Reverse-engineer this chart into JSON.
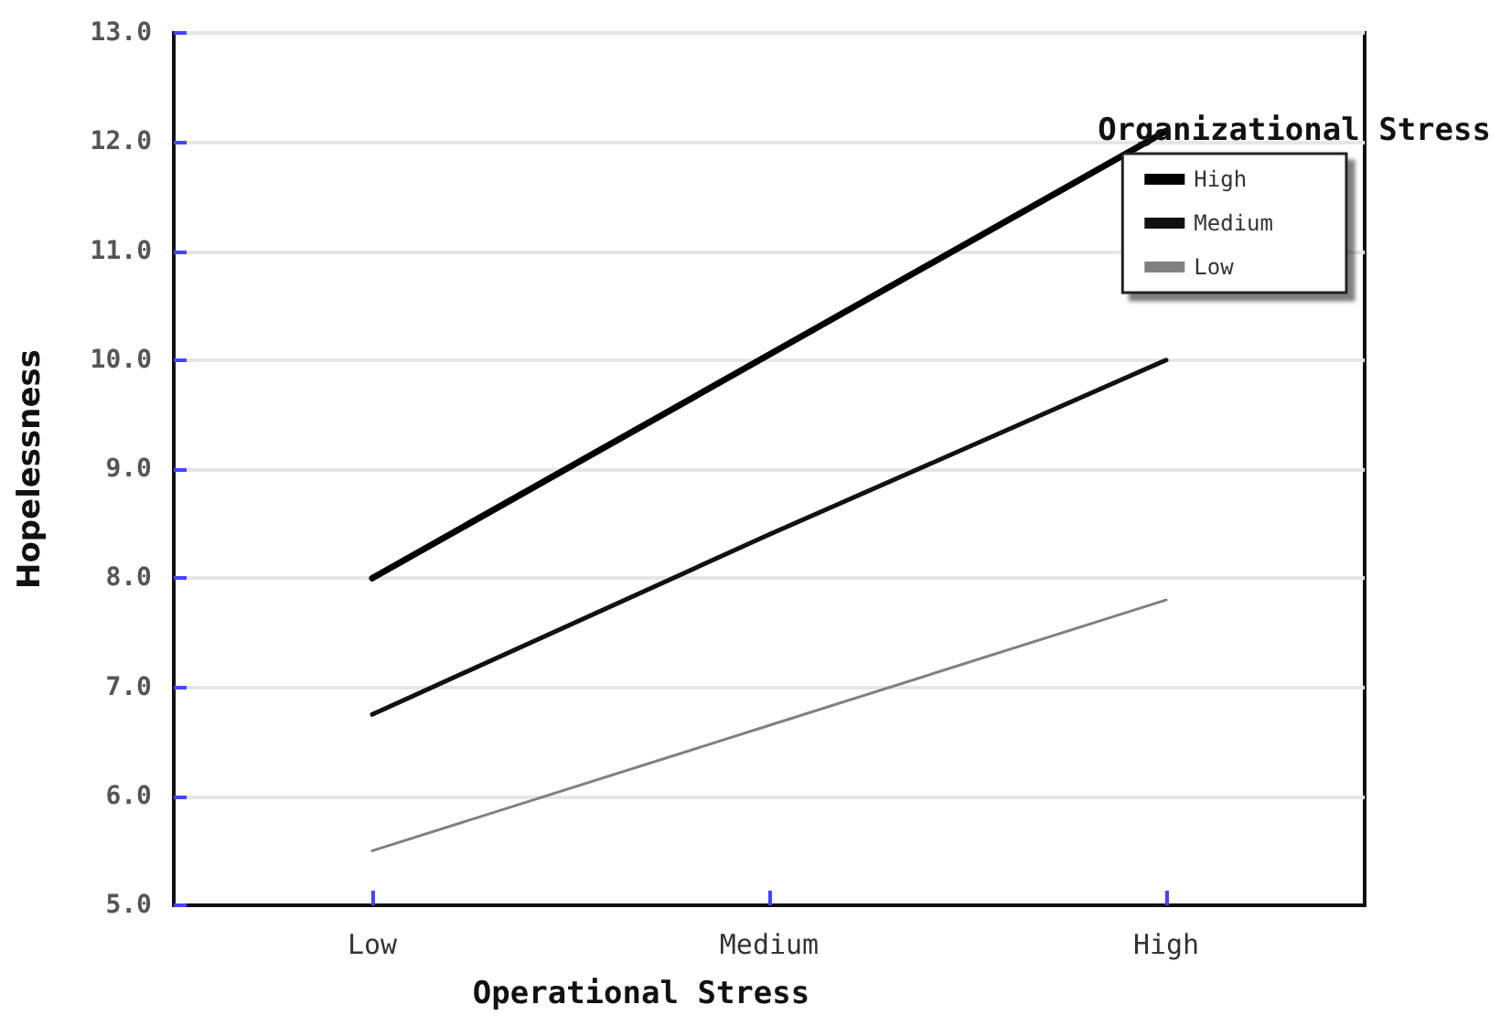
{
  "chart_data": {
    "type": "line",
    "xlabel": "Operational Stress",
    "ylabel": "Hopelessness",
    "legend_title": "Organizational Stress",
    "categories": [
      "Low",
      "Medium",
      "High"
    ],
    "series": [
      {
        "name": "High",
        "color": "#000000",
        "values": [
          8.0,
          10.05,
          12.1
        ]
      },
      {
        "name": "Medium",
        "color": "#111111",
        "values": [
          6.75,
          8.4,
          10.0
        ]
      },
      {
        "name": "Low",
        "color": "#808080",
        "values": [
          5.5,
          6.65,
          7.8
        ]
      }
    ],
    "ylim": [
      5,
      13
    ],
    "yticks": [
      {
        "value": 5,
        "label": "5.0"
      },
      {
        "value": 6,
        "label": "6.0"
      },
      {
        "value": 7,
        "label": "7.0"
      },
      {
        "value": 8,
        "label": "8.0"
      },
      {
        "value": 9,
        "label": "9.0"
      },
      {
        "value": 10,
        "label": "10.0"
      },
      {
        "value": 11,
        "label": "11.0"
      },
      {
        "value": 12,
        "label": "12.0"
      },
      {
        "value": 13,
        "label": "13.0"
      }
    ],
    "grid": "y",
    "legend": "top right",
    "marker": "none",
    "line_style": "solid"
  }
}
